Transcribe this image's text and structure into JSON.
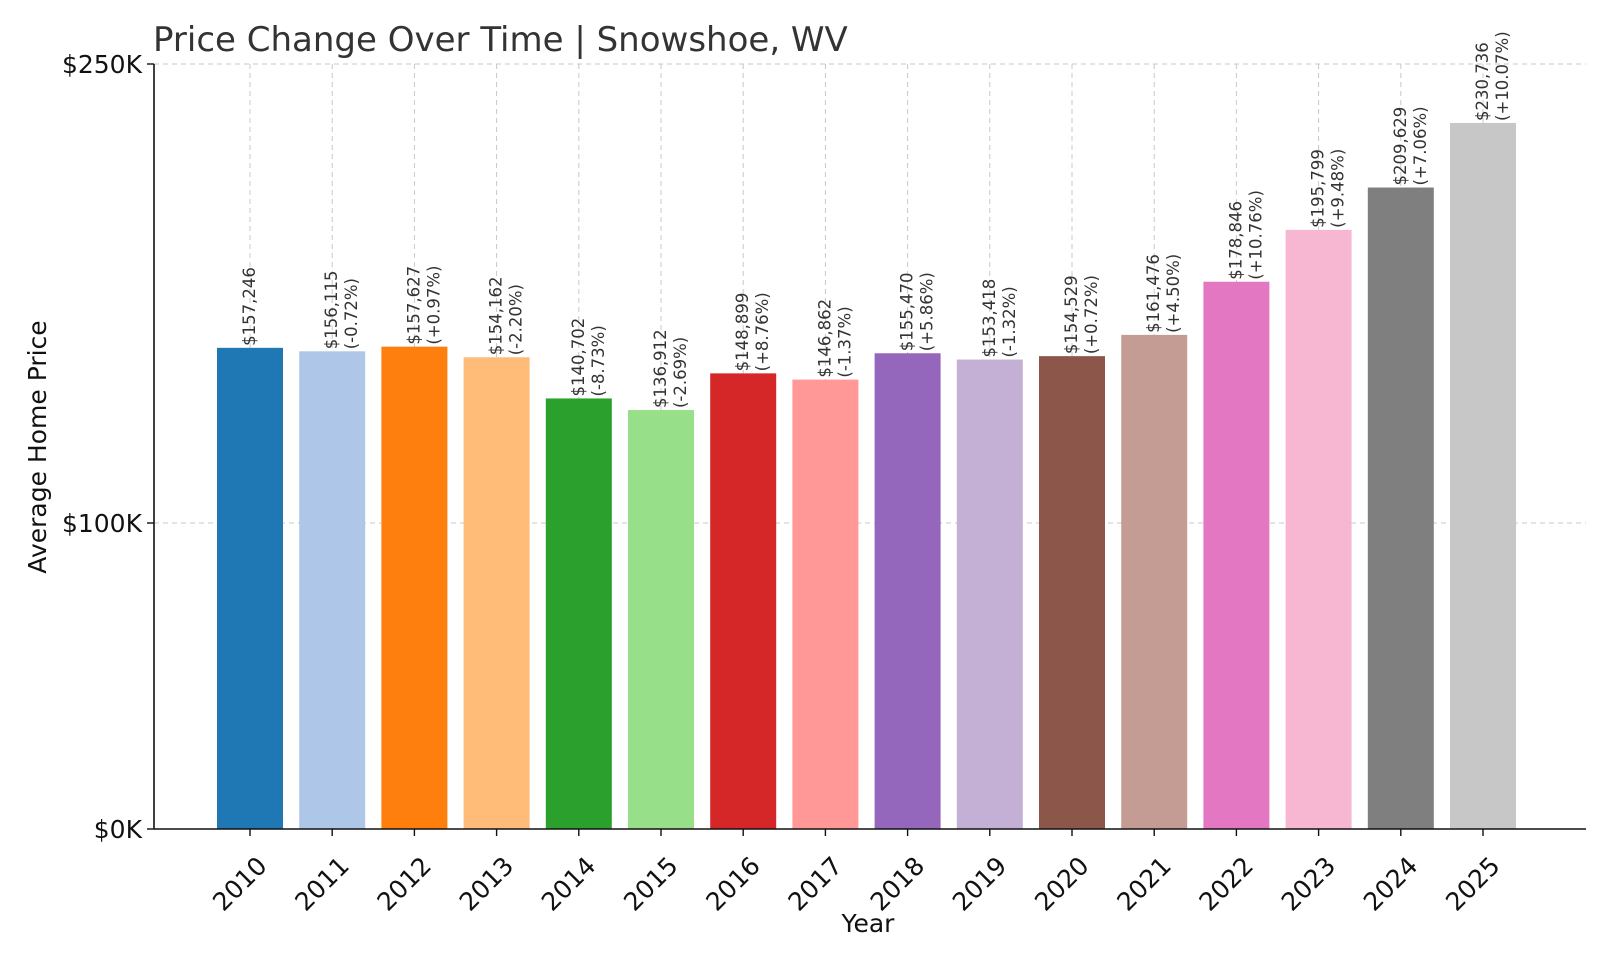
{
  "chart_data": {
    "type": "bar",
    "title": "Price Change Over Time | Snowshoe, WV",
    "xlabel": "Year",
    "ylabel": "Average Home Price",
    "categories": [
      "2010",
      "2011",
      "2012",
      "2013",
      "2014",
      "2015",
      "2016",
      "2017",
      "2018",
      "2019",
      "2020",
      "2021",
      "2022",
      "2023",
      "2024",
      "2025"
    ],
    "values": [
      157246,
      156115,
      157627,
      154162,
      140702,
      136912,
      148899,
      146862,
      155470,
      153418,
      154529,
      161476,
      178846,
      195799,
      209629,
      230736
    ],
    "value_labels": [
      "$157,246",
      "$156,115",
      "$157,627",
      "$154,162",
      "$140,702",
      "$136,912",
      "$148,899",
      "$146,862",
      "$155,470",
      "$153,418",
      "$154,529",
      "$161,476",
      "$178,846",
      "$195,799",
      "$209,629",
      "$230,736"
    ],
    "change_labels": [
      "",
      "(-0.72%)",
      "(+0.97%)",
      "(-2.20%)",
      "(-8.73%)",
      "(-2.69%)",
      "(+8.76%)",
      "(-1.37%)",
      "(+5.86%)",
      "(-1.32%)",
      "(+0.72%)",
      "(+4.50%)",
      "(+10.76%)",
      "(+9.48%)",
      "(+7.06%)",
      "(+10.07%)"
    ],
    "colors": [
      "#1f77b4",
      "#aec7e8",
      "#ff7f0e",
      "#ffbb78",
      "#2ca02c",
      "#98df8a",
      "#d62728",
      "#ff9896",
      "#9467bd",
      "#c5b0d5",
      "#8c564b",
      "#c49c94",
      "#e377c2",
      "#f7b6d2",
      "#7f7f7f",
      "#c7c7c7"
    ],
    "yticks": [
      0,
      100000,
      250000
    ],
    "ytick_labels": [
      "$0K",
      "$100K",
      "$250K"
    ],
    "ylim": [
      0,
      250000
    ],
    "grid": true
  }
}
